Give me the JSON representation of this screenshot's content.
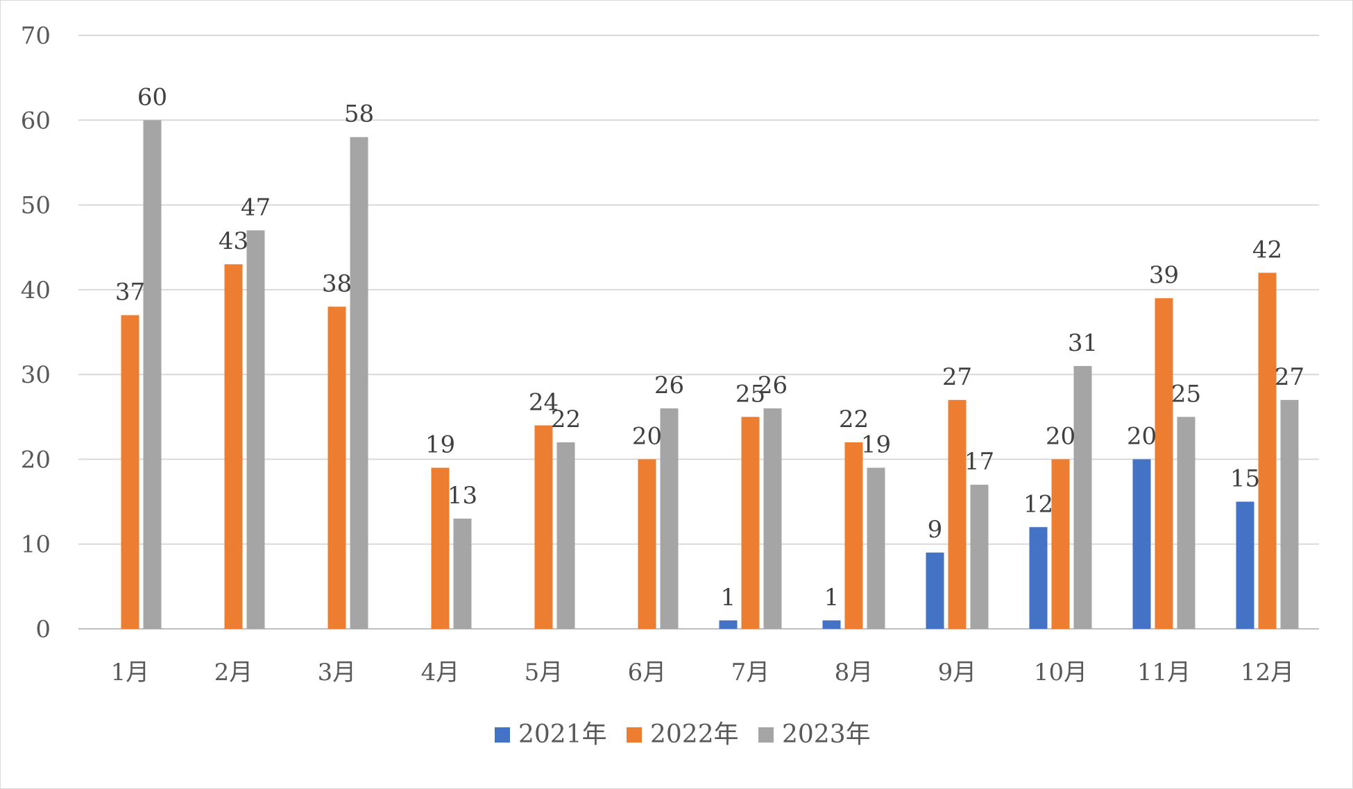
{
  "chart_data": {
    "type": "bar",
    "title": "",
    "xlabel": "",
    "ylabel": "",
    "ylim": [
      0,
      70
    ],
    "yticks": [
      0,
      10,
      20,
      30,
      40,
      50,
      60,
      70
    ],
    "grid": true,
    "legend_position": "bottom",
    "categories": [
      "1月",
      "2月",
      "3月",
      "4月",
      "5月",
      "6月",
      "7月",
      "8月",
      "9月",
      "10月",
      "11月",
      "12月"
    ],
    "series": [
      {
        "name": "2021年",
        "color": "#4472C4",
        "values": [
          null,
          null,
          null,
          null,
          null,
          null,
          1,
          1,
          9,
          12,
          20,
          15
        ]
      },
      {
        "name": "2022年",
        "color": "#ED7D31",
        "values": [
          37,
          43,
          38,
          19,
          24,
          20,
          25,
          22,
          27,
          20,
          39,
          42
        ]
      },
      {
        "name": "2023年",
        "color": "#A5A5A5",
        "values": [
          60,
          47,
          58,
          13,
          22,
          26,
          26,
          19,
          17,
          31,
          25,
          27
        ]
      }
    ]
  }
}
